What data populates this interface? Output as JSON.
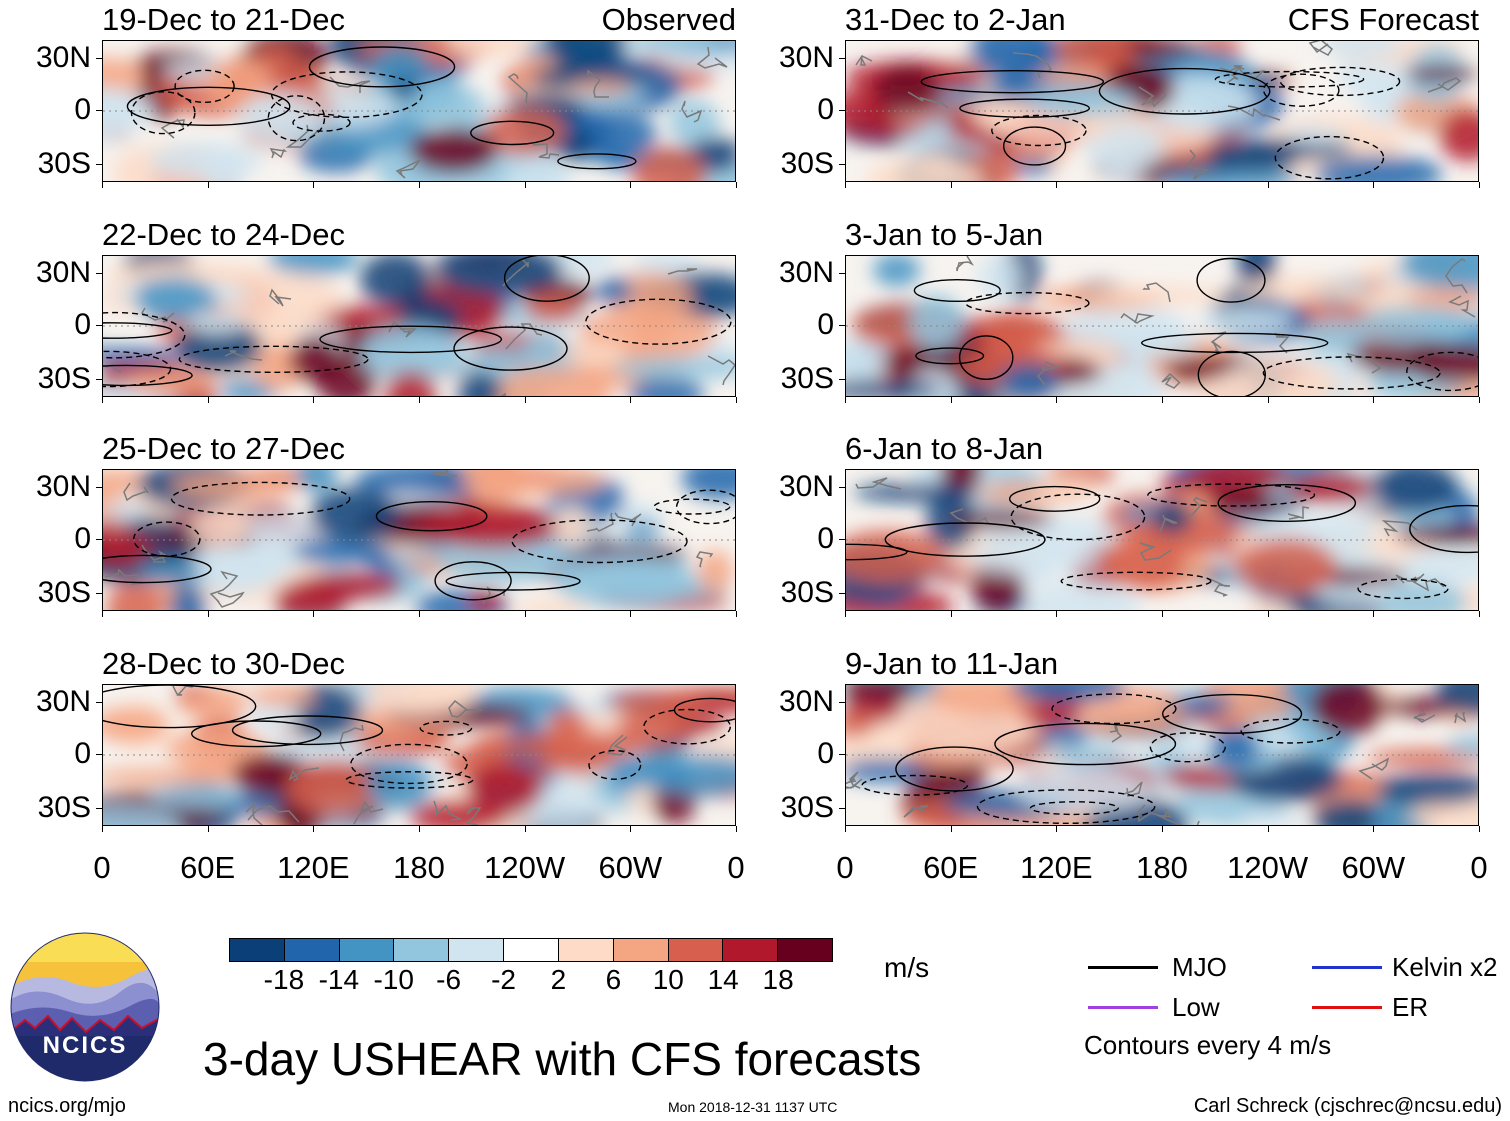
{
  "chart_data": {
    "type": "heatmap",
    "title": "3-day USHEAR with CFS forecasts",
    "units": "m/s",
    "observed_label": "Observed",
    "forecast_label": "CFS Forecast",
    "lat_ticks": [
      "30N",
      "0",
      "30S"
    ],
    "lon_ticks": [
      "0",
      "60E",
      "120E",
      "180",
      "120W",
      "60W",
      "0"
    ],
    "observed_panels": [
      "19-Dec to 21-Dec",
      "22-Dec to 24-Dec",
      "25-Dec to 27-Dec",
      "28-Dec to 30-Dec"
    ],
    "forecast_panels": [
      "31-Dec to 2-Jan",
      "3-Jan to 5-Jan",
      "6-Jan to 8-Jan",
      "9-Jan to 11-Jan"
    ],
    "colorbar_levels": [
      "-18",
      "-14",
      "-10",
      "-6",
      "-2",
      "2",
      "6",
      "10",
      "14",
      "18"
    ],
    "colorbar_colors": [
      "#0b3f77",
      "#2166ac",
      "#4393c3",
      "#92c5de",
      "#d1e5f0",
      "#ffffff",
      "#fddbc7",
      "#f4a582",
      "#d6604d",
      "#b2182b",
      "#67001f"
    ],
    "contour_legend": [
      {
        "label": "MJO",
        "color": "#000000"
      },
      {
        "label": "Kelvin x2",
        "color": "#2233cc"
      },
      {
        "label": "Low",
        "color": "#a040e0"
      },
      {
        "label": "ER",
        "color": "#e01010"
      }
    ],
    "contour_interval_note": "Contours every 4 m/s"
  },
  "branding": {
    "logo_text": "NCICS",
    "site": "ncics.org/mjo",
    "timestamp": "Mon 2018-12-31 1137 UTC",
    "author": "Carl Schreck (cjschrec@ncsu.edu)"
  }
}
